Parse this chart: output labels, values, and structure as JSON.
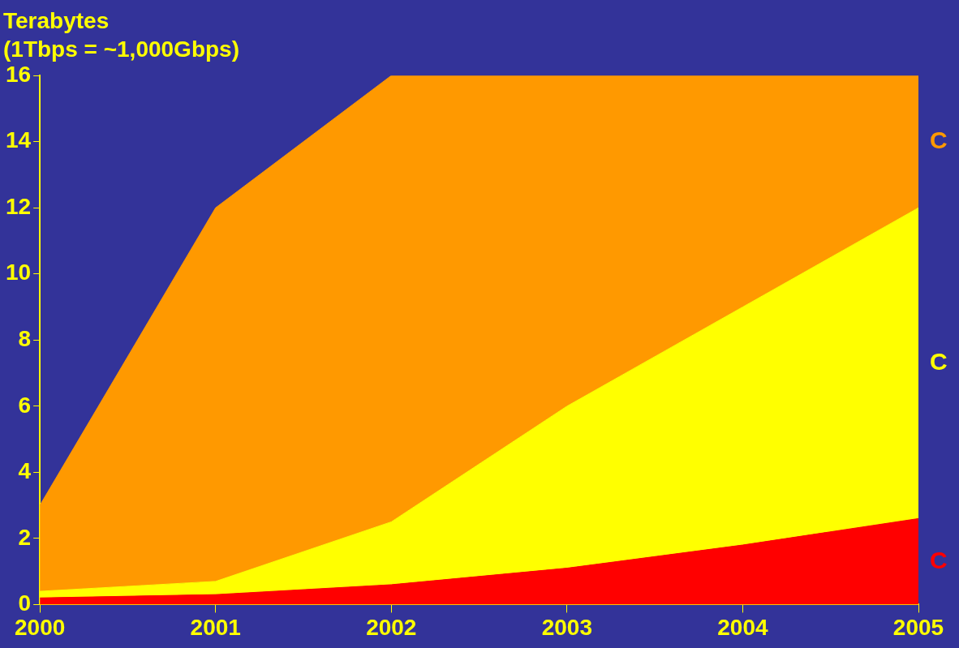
{
  "chart_data": {
    "type": "area",
    "stacked": true,
    "title": "Terabytes",
    "subtitle": "(1Tbps = ~1,000Gbps)",
    "x": [
      2000,
      2001,
      2002,
      2003,
      2004,
      2005
    ],
    "series": [
      {
        "name": "C",
        "color": "#ff0000",
        "values": [
          0.2,
          0.3,
          0.6,
          1.1,
          1.8,
          2.6
        ]
      },
      {
        "name": "C",
        "color": "#ffff00",
        "values": [
          0.2,
          0.4,
          1.9,
          4.9,
          7.2,
          9.4
        ]
      },
      {
        "name": "C",
        "color": "#ff9900",
        "values": [
          2.6,
          11.3,
          13.5,
          10,
          7,
          4
        ]
      }
    ],
    "xlim": [
      2000,
      2005
    ],
    "xticks": [
      2000,
      2001,
      2002,
      2003,
      2004,
      2005
    ],
    "ylim": [
      0,
      16
    ],
    "yticks": [
      0,
      2,
      4,
      6,
      8,
      10,
      12,
      14,
      16
    ],
    "legend": false
  }
}
